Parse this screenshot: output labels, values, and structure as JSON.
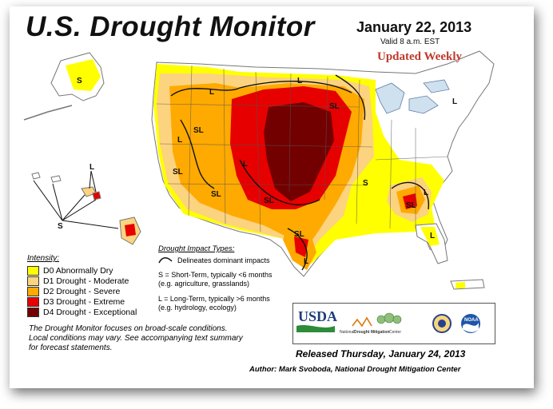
{
  "header": {
    "title": "U.S. Drought Monitor",
    "date": "January 22, 2013",
    "valid": "Valid 8 a.m. EST",
    "updated": "Updated Weekly"
  },
  "intensity": {
    "title": "Intensity:",
    "levels": [
      {
        "label": "D0 Abnormally Dry",
        "color": "#ffff00"
      },
      {
        "label": "D1 Drought - Moderate",
        "color": "#fcd37f"
      },
      {
        "label": "D2 Drought - Severe",
        "color": "#ffaa00"
      },
      {
        "label": "D3 Drought - Extreme",
        "color": "#e60000"
      },
      {
        "label": "D4 Drought - Exceptional",
        "color": "#730000"
      }
    ]
  },
  "impact": {
    "title": "Drought Impact Types:",
    "line_label": "Delineates dominant impacts",
    "short_term": "S = Short-Term, typically <6 months",
    "short_term_example": "(e.g. agriculture, grasslands)",
    "long_term": "L = Long-Term, typically >6 months",
    "long_term_example": "(e.g. hydrology, ecology)"
  },
  "focus_note": {
    "line1": "The Drought Monitor focuses on broad-scale conditions.",
    "line2": "Local conditions may vary.  See accompanying text summary",
    "line3": "for forecast statements."
  },
  "map_labels": {
    "S": "S",
    "L": "L",
    "SL": "SL"
  },
  "logos": {
    "usda": "USDA",
    "ndmc_prefix": "National",
    "ndmc_mid": "Drought Mitigation",
    "ndmc_suffix": "Center",
    "noaa": "NOAA"
  },
  "footer": {
    "released": "Released Thursday, January 24, 2013",
    "author": "Author: Mark Svoboda, National Drought Mitigation Center"
  },
  "colors": {
    "d0": "#ffff00",
    "d1": "#fcd37f",
    "d2": "#ffaa00",
    "d3": "#e60000",
    "d4": "#730000",
    "updated_text": "#c0392b"
  }
}
